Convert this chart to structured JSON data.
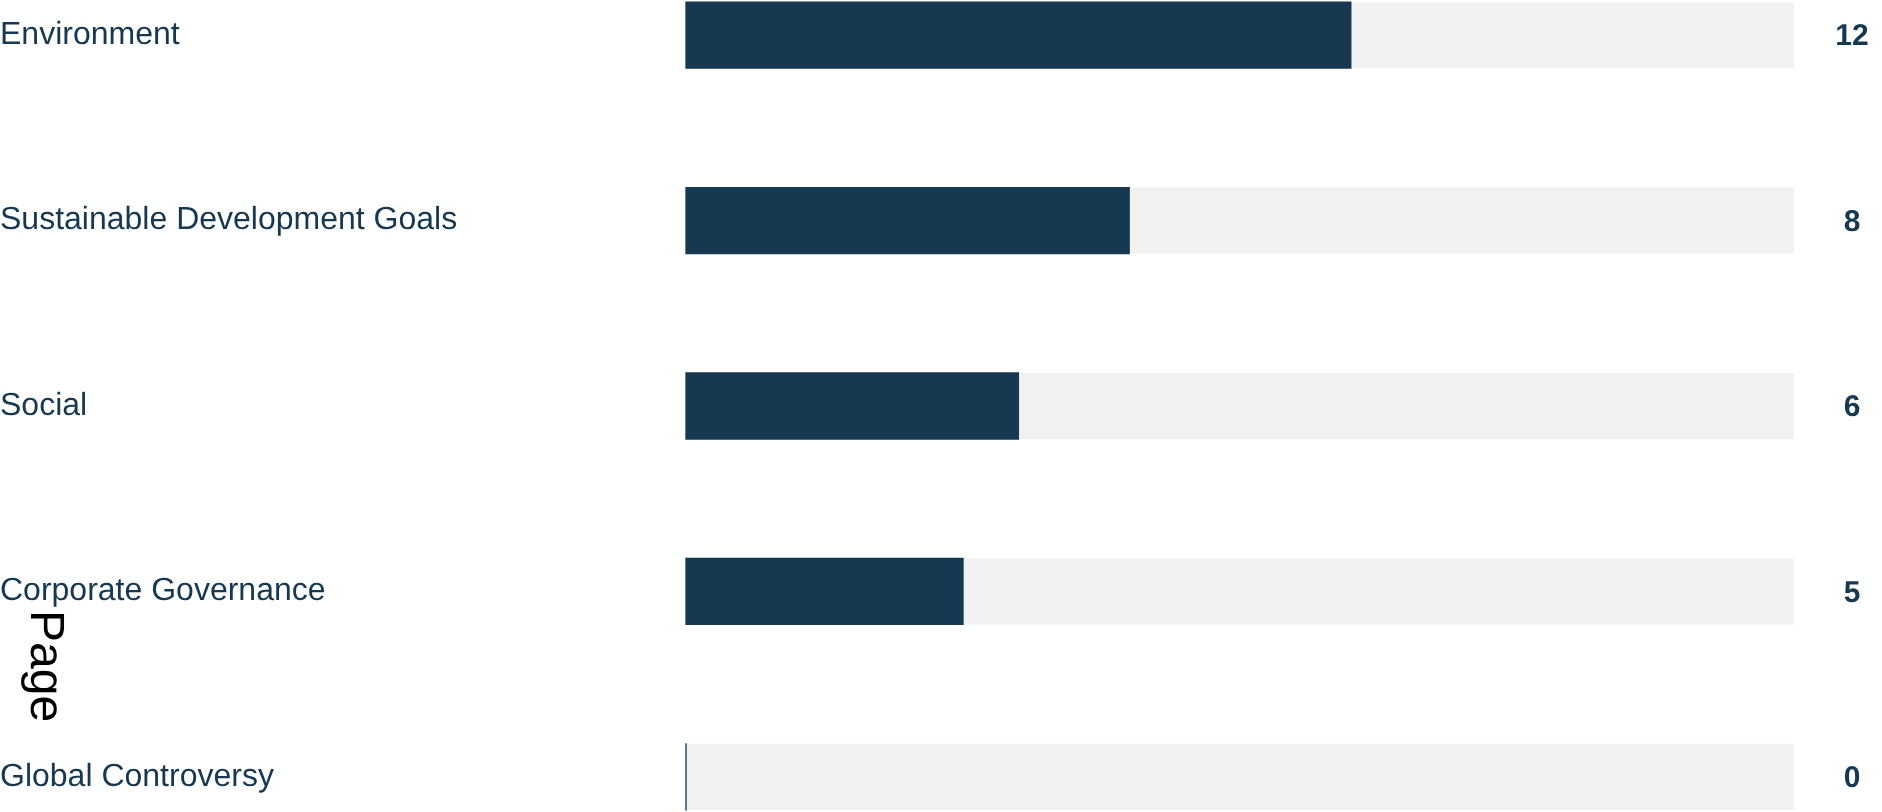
{
  "chart_data": {
    "type": "bar",
    "orientation": "horizontal",
    "categories": [
      "Environment",
      "Sustainable Development Goals",
      "Social",
      "Corporate Governance",
      "Global Controversy"
    ],
    "values": [
      12,
      8,
      6,
      5,
      0
    ],
    "color": "#163851",
    "xlim": [
      0,
      20
    ],
    "data_labels": true,
    "tick_labels": "y",
    "grid": false,
    "legend": false,
    "annotations": [
      "Page"
    ]
  }
}
